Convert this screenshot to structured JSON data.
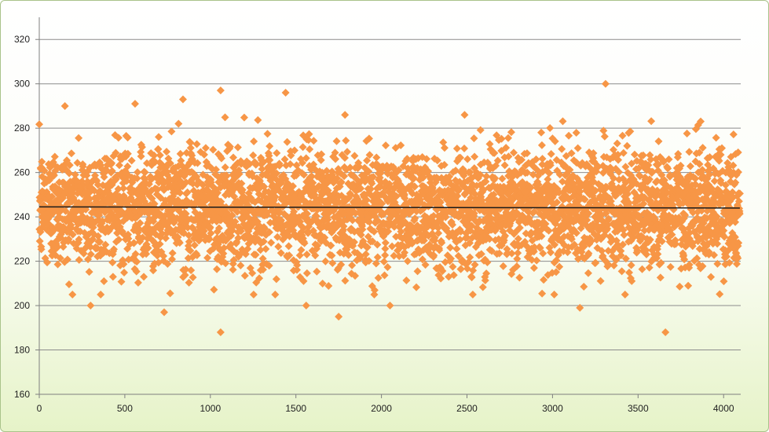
{
  "chart_data": {
    "type": "scatter",
    "title": "",
    "xlabel": "",
    "ylabel": "",
    "xlim": [
      0,
      4100
    ],
    "ylim": [
      160,
      330
    ],
    "x_ticks": [
      0,
      500,
      1000,
      1500,
      2000,
      2500,
      3000,
      3500,
      4000
    ],
    "y_ticks": [
      160,
      180,
      200,
      220,
      240,
      260,
      280,
      300,
      320
    ],
    "x_tick_labels": [
      "0",
      "500",
      "1000",
      "1500",
      "2000",
      "2500",
      "3000",
      "3500",
      "4000"
    ],
    "y_tick_labels": [
      "160",
      "180",
      "200",
      "220",
      "240",
      "260",
      "280",
      "300",
      "320"
    ],
    "grid": "horizontal",
    "legend": "none",
    "marker": "diamond",
    "point_count": 4096,
    "x_range": [
      0,
      4095
    ],
    "typical_range": [
      215,
      275
    ],
    "trendline": {
      "x": [
        0,
        4095
      ],
      "y": [
        244.5,
        244.0
      ]
    },
    "notable_points": [
      {
        "x": 3310,
        "y": 300
      },
      {
        "x": 1060,
        "y": 297
      },
      {
        "x": 1440,
        "y": 296
      },
      {
        "x": 840,
        "y": 293
      },
      {
        "x": 560,
        "y": 291
      },
      {
        "x": 150,
        "y": 290
      },
      {
        "x": 1060,
        "y": 188
      },
      {
        "x": 3660,
        "y": 188
      },
      {
        "x": 1750,
        "y": 195
      },
      {
        "x": 730,
        "y": 197
      },
      {
        "x": 300,
        "y": 200
      },
      {
        "x": 3160,
        "y": 199
      },
      {
        "x": 2050,
        "y": 200
      },
      {
        "x": 1560,
        "y": 200
      }
    ],
    "colors": {
      "points": "#f79646",
      "trendline": "#1a1a1a",
      "gridlines": "#8c8c8c",
      "axis": "#7f7f7f",
      "frame_border": "#a9c38a",
      "frame_bottom": "#e6f3c8"
    }
  }
}
